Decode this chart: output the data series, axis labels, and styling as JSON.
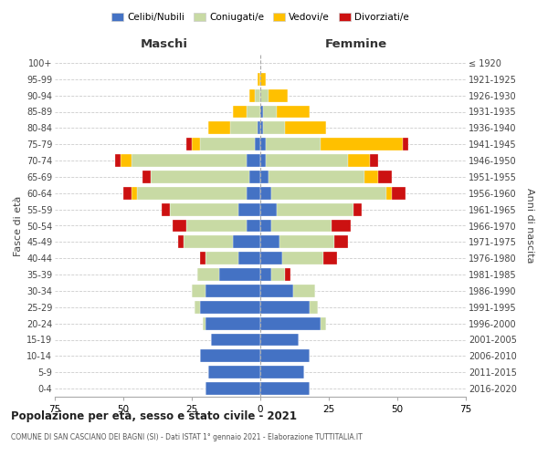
{
  "age_groups": [
    "0-4",
    "5-9",
    "10-14",
    "15-19",
    "20-24",
    "25-29",
    "30-34",
    "35-39",
    "40-44",
    "45-49",
    "50-54",
    "55-59",
    "60-64",
    "65-69",
    "70-74",
    "75-79",
    "80-84",
    "85-89",
    "90-94",
    "95-99",
    "100+"
  ],
  "birth_years": [
    "2016-2020",
    "2011-2015",
    "2006-2010",
    "2001-2005",
    "1996-2000",
    "1991-1995",
    "1986-1990",
    "1981-1985",
    "1976-1980",
    "1971-1975",
    "1966-1970",
    "1961-1965",
    "1956-1960",
    "1951-1955",
    "1946-1950",
    "1941-1945",
    "1936-1940",
    "1931-1935",
    "1926-1930",
    "1921-1925",
    "≤ 1920"
  ],
  "maschi": {
    "celibi": [
      20,
      19,
      22,
      18,
      20,
      22,
      20,
      15,
      8,
      10,
      5,
      8,
      5,
      4,
      5,
      2,
      1,
      0,
      0,
      0,
      0
    ],
    "coniugati": [
      0,
      0,
      0,
      0,
      1,
      2,
      5,
      8,
      12,
      18,
      22,
      25,
      40,
      36,
      42,
      20,
      10,
      5,
      2,
      0,
      0
    ],
    "vedovi": [
      0,
      0,
      0,
      0,
      0,
      0,
      0,
      0,
      0,
      0,
      0,
      0,
      2,
      0,
      4,
      3,
      8,
      5,
      2,
      1,
      0
    ],
    "divorziati": [
      0,
      0,
      0,
      0,
      0,
      0,
      0,
      0,
      2,
      2,
      5,
      3,
      3,
      3,
      2,
      2,
      0,
      0,
      0,
      0,
      0
    ]
  },
  "femmine": {
    "nubili": [
      18,
      16,
      18,
      14,
      22,
      18,
      12,
      4,
      8,
      7,
      4,
      6,
      4,
      3,
      2,
      2,
      1,
      1,
      0,
      0,
      0
    ],
    "coniugate": [
      0,
      0,
      0,
      0,
      2,
      3,
      8,
      5,
      15,
      20,
      22,
      28,
      42,
      35,
      30,
      20,
      8,
      5,
      3,
      0,
      0
    ],
    "vedove": [
      0,
      0,
      0,
      0,
      0,
      0,
      0,
      0,
      0,
      0,
      0,
      0,
      2,
      5,
      8,
      30,
      15,
      12,
      7,
      2,
      0
    ],
    "divorziate": [
      0,
      0,
      0,
      0,
      0,
      0,
      0,
      2,
      5,
      5,
      7,
      3,
      5,
      5,
      3,
      2,
      0,
      0,
      0,
      0,
      0
    ]
  },
  "colors": {
    "celibi": "#4472c4",
    "coniugati": "#c8daa4",
    "vedovi": "#ffc000",
    "divorziati": "#cc1111"
  },
  "xlim": 75,
  "title": "Popolazione per età, sesso e stato civile - 2021",
  "subtitle": "COMUNE DI SAN CASCIANO DEI BAGNI (SI) - Dati ISTAT 1° gennaio 2021 - Elaborazione TUTTITALIA.IT",
  "ylabel_left": "Fasce di età",
  "ylabel_right": "Anni di nascita",
  "xlabel_maschi": "Maschi",
  "xlabel_femmine": "Femmine",
  "legend_labels": [
    "Celibi/Nubili",
    "Coniugati/e",
    "Vedovi/e",
    "Divorziati/e"
  ],
  "bg_color": "#ffffff",
  "grid_color": "#cccccc"
}
